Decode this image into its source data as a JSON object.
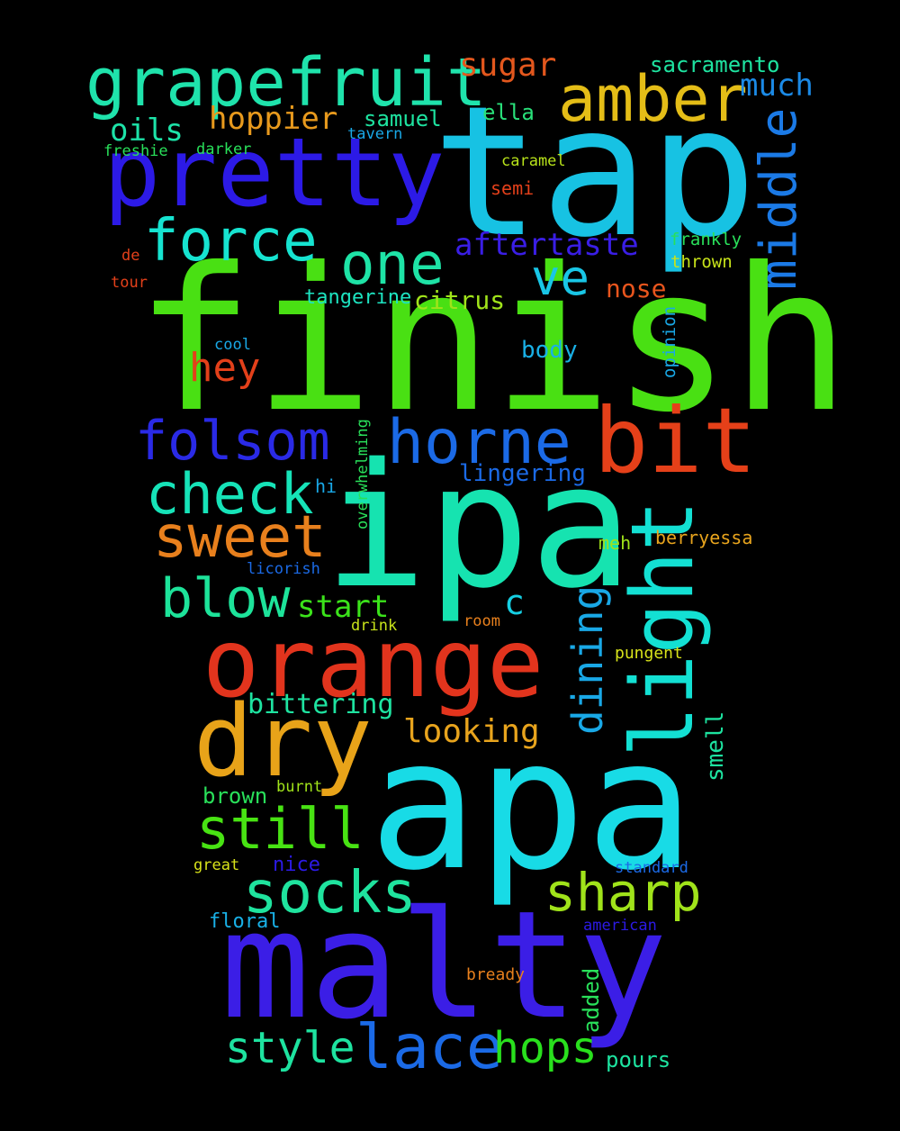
{
  "words": [
    {
      "id": "finish",
      "text": "finish",
      "color": "#49e013"
    },
    {
      "id": "tap",
      "text": "tap",
      "color": "#17c2e3"
    },
    {
      "id": "apa",
      "text": "apa",
      "color": "#18dbe6"
    },
    {
      "id": "ipa",
      "text": "ipa",
      "color": "#16e3b0"
    },
    {
      "id": "malty",
      "text": "malty",
      "color": "#3b1ee6"
    },
    {
      "id": "orange",
      "text": "orange",
      "color": "#e2341d"
    },
    {
      "id": "pretty",
      "text": "pretty",
      "color": "#2c1ae6"
    },
    {
      "id": "bit",
      "text": "bit",
      "color": "#e54019"
    },
    {
      "id": "dry",
      "text": "dry",
      "color": "#e8a319"
    },
    {
      "id": "light",
      "text": "light",
      "color": "#13e0d3"
    },
    {
      "id": "grapefruit",
      "text": "grapefruit",
      "color": "#1fe3ac"
    },
    {
      "id": "amber",
      "text": "amber",
      "color": "#e4bd17"
    },
    {
      "id": "horne",
      "text": "horne",
      "color": "#1b6ae6"
    },
    {
      "id": "lace",
      "text": "lace",
      "color": "#1b6ae6"
    },
    {
      "id": "folsom",
      "text": "folsom",
      "color": "#2a2ae6"
    },
    {
      "id": "sweet",
      "text": "sweet",
      "color": "#e8801d"
    },
    {
      "id": "force",
      "text": "force",
      "color": "#16e3d0"
    },
    {
      "id": "check",
      "text": "check",
      "color": "#16e3b8"
    },
    {
      "id": "socks",
      "text": "socks",
      "color": "#1fe39e"
    },
    {
      "id": "one",
      "text": "one",
      "color": "#1ee3a6"
    },
    {
      "id": "middle",
      "text": "middle",
      "color": "#1b7ae6"
    },
    {
      "id": "sharp",
      "text": "sharp",
      "color": "#a0e31a"
    },
    {
      "id": "still",
      "text": "still",
      "color": "#48e313"
    },
    {
      "id": "blow",
      "text": "blow",
      "color": "#1de39a"
    },
    {
      "id": "hops",
      "text": "hops",
      "color": "#29e01d"
    },
    {
      "id": "style",
      "text": "style",
      "color": "#1ee3a0"
    },
    {
      "id": "ve",
      "text": "ve",
      "color": "#19c6e6"
    },
    {
      "id": "dining",
      "text": "dining",
      "color": "#19a8e6"
    },
    {
      "id": "hey",
      "text": "hey",
      "color": "#e3401a"
    },
    {
      "id": "sugar",
      "text": "sugar",
      "color": "#e3571d"
    },
    {
      "id": "hoppier",
      "text": "hoppier",
      "color": "#e89a1d"
    },
    {
      "id": "much",
      "text": "much",
      "color": "#1b8ae6"
    },
    {
      "id": "aftertaste",
      "text": "aftertaste",
      "color": "#3a1ee6"
    },
    {
      "id": "looking",
      "text": "looking",
      "color": "#e8a41d"
    },
    {
      "id": "c",
      "text": "c",
      "color": "#16cfe3"
    },
    {
      "id": "start",
      "text": "start",
      "color": "#3be31a"
    },
    {
      "id": "bittering",
      "text": "bittering",
      "color": "#1ee3a0"
    },
    {
      "id": "oils",
      "text": "oils",
      "color": "#1de3a8"
    },
    {
      "id": "sacramento",
      "text": "sacramento",
      "color": "#1ee3a0"
    },
    {
      "id": "samuel",
      "text": "samuel",
      "color": "#1ee3a0"
    },
    {
      "id": "ella",
      "text": "ella",
      "color": "#29e07a"
    },
    {
      "id": "nose",
      "text": "nose",
      "color": "#e8551d"
    },
    {
      "id": "citrus",
      "text": "citrus",
      "color": "#a0e31a"
    },
    {
      "id": "lingering",
      "text": "lingering",
      "color": "#1b6ae6"
    },
    {
      "id": "tangerine",
      "text": "tangerine",
      "color": "#1de3c0"
    },
    {
      "id": "body",
      "text": "body",
      "color": "#19b0e6"
    },
    {
      "id": "smell",
      "text": "smell",
      "color": "#1de3a0"
    },
    {
      "id": "brown",
      "text": "brown",
      "color": "#29e05a"
    },
    {
      "id": "added",
      "text": "added",
      "color": "#29e05a"
    },
    {
      "id": "pours",
      "text": "pours",
      "color": "#1de3a0"
    },
    {
      "id": "berryessa",
      "text": "berryessa",
      "color": "#e8a41d"
    },
    {
      "id": "frankly",
      "text": "frankly",
      "color": "#29e05a"
    },
    {
      "id": "thrown",
      "text": "thrown",
      "color": "#c8e31a"
    },
    {
      "id": "caramel",
      "text": "caramel",
      "color": "#b8e31a"
    },
    {
      "id": "semi",
      "text": "semi",
      "color": "#e3401a"
    },
    {
      "id": "floral",
      "text": "floral",
      "color": "#19b0e6"
    },
    {
      "id": "nice",
      "text": "nice",
      "color": "#2c1ae6"
    },
    {
      "id": "meh",
      "text": "meh",
      "color": "#a0e31a"
    },
    {
      "id": "pungent",
      "text": "pungent",
      "color": "#d8e31a"
    },
    {
      "id": "hi",
      "text": "hi",
      "color": "#19a8e6"
    },
    {
      "id": "opinion",
      "text": "opinion",
      "color": "#19a8e6"
    },
    {
      "id": "overwhelming",
      "text": "overwhelming",
      "color": "#29e05a"
    },
    {
      "id": "tavern",
      "text": "tavern",
      "color": "#19a8e6"
    },
    {
      "id": "darker",
      "text": "darker",
      "color": "#29e05a"
    },
    {
      "id": "freshie",
      "text": "freshie",
      "color": "#29e05a"
    },
    {
      "id": "cool",
      "text": "cool",
      "color": "#19a8e6"
    },
    {
      "id": "licorish",
      "text": "licorish",
      "color": "#1b6ae6"
    },
    {
      "id": "drink",
      "text": "drink",
      "color": "#c8e31a"
    },
    {
      "id": "room",
      "text": "room",
      "color": "#e8801d"
    },
    {
      "id": "burnt",
      "text": "burnt",
      "color": "#a0e31a"
    },
    {
      "id": "great",
      "text": "great",
      "color": "#d8e31a"
    },
    {
      "id": "standard",
      "text": "standard",
      "color": "#1b6ae6"
    },
    {
      "id": "american",
      "text": "american",
      "color": "#2c1ae6"
    },
    {
      "id": "bready",
      "text": "bready",
      "color": "#e8801d"
    },
    {
      "id": "de",
      "text": "de",
      "color": "#e3401a"
    },
    {
      "id": "tour",
      "text": "tour",
      "color": "#e3401a"
    }
  ]
}
